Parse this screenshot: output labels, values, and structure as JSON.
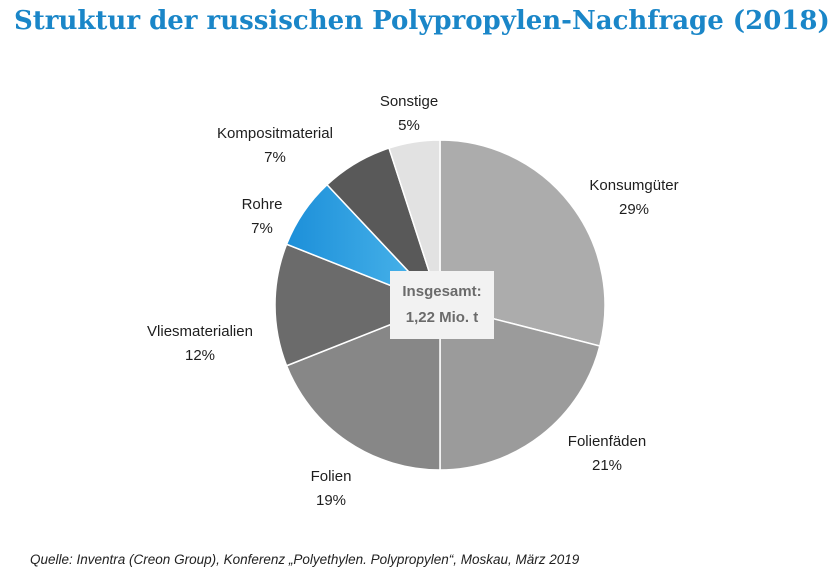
{
  "chart_data": {
    "type": "pie",
    "title": "Struktur der russischen Polypropylen-Nachfrage (2018)",
    "start_angle_deg": 0,
    "direction": "clockwise",
    "slices": [
      {
        "label": "Konsumgüter",
        "value": 29,
        "display": "29%",
        "color": "#acacac"
      },
      {
        "label": "Folienfäden",
        "value": 21,
        "display": "21%",
        "color": "#9b9b9b"
      },
      {
        "label": "Folien",
        "value": 19,
        "display": "19%",
        "color": "#878787"
      },
      {
        "label": "Vliesmaterialien",
        "value": 12,
        "display": "12%",
        "color": "#6b6b6b"
      },
      {
        "label": "Rohre",
        "value": 7,
        "display": "7%",
        "color": "#1c8fd9"
      },
      {
        "label": "Kompositmaterial",
        "value": 7,
        "display": "7%",
        "color": "#595959"
      },
      {
        "label": "Sonstige",
        "value": 5,
        "display": "5%",
        "color": "#e2e2e2"
      }
    ],
    "center_label": {
      "line1": "Insgesamt:",
      "line2": "1,22 Mio. t"
    }
  },
  "source": "Quelle: Inventra (Creon Group), Konferenz „Polyethylen. Polypropylen“, Moskau, März 2019"
}
